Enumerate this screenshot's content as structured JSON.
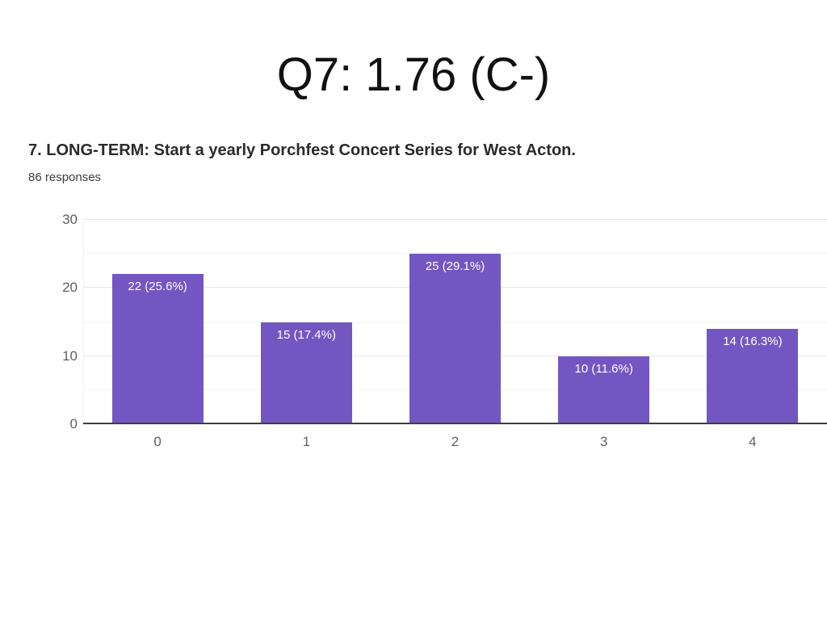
{
  "page": {
    "title": "Q7: 1.76 (C-)"
  },
  "question": {
    "text": "7. LONG-TERM: Start a yearly Porchfest Concert Series for West Acton.",
    "responses_label": "86 responses"
  },
  "chart_data": {
    "type": "bar",
    "title": "",
    "categories": [
      "0",
      "1",
      "2",
      "3",
      "4"
    ],
    "values": [
      22,
      15,
      25,
      10,
      14
    ],
    "bar_labels": [
      "22 (25.6%)",
      "15 (17.4%)",
      "25 (29.1%)",
      "10 (11.6%)",
      "14 (16.3%)"
    ],
    "total_responses": 86,
    "xlabel": "",
    "ylabel": "",
    "ylim": [
      0,
      30
    ],
    "yticks": [
      0,
      10,
      20,
      30
    ],
    "minor_grid_step": 5,
    "grid": true,
    "legend_position": "none",
    "colors": {
      "bar": "#7456c2",
      "bar_label_text": "#ffffff",
      "axis_tick_text": "#5f5f5f",
      "baseline": "#3f3f3f",
      "major_gridline": "#e6e6e6",
      "minor_gridline": "#f4f4f4",
      "title_text": "#111111",
      "question_text": "#2b2b2b",
      "responses_text": "#3c3c3c"
    }
  }
}
